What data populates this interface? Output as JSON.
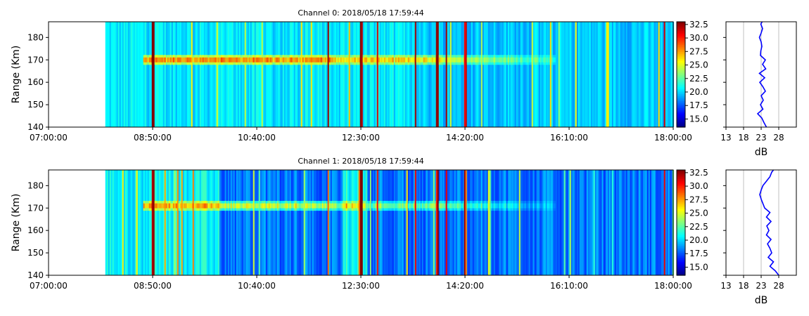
{
  "chart_data": [
    {
      "type": "heatmap",
      "title": "Channel 0: 2018/05/18 17:59:44",
      "ylabel": "Range (Km)",
      "xlabel": "",
      "x_ticks": [
        "07:00:00",
        "08:50:00",
        "10:40:00",
        "12:30:00",
        "14:20:00",
        "16:10:00",
        "18:00:00"
      ],
      "xlim": [
        "07:00:00",
        "18:00:00"
      ],
      "data_start": "08:00:00",
      "y_ticks": [
        140,
        150,
        160,
        170,
        180
      ],
      "ylim": [
        140,
        187
      ],
      "colormap": "jet",
      "colorbar": {
        "range": [
          13.5,
          33
        ],
        "ticks": [
          "15.0",
          "17.5",
          "20.0",
          "22.5",
          "25.0",
          "27.5",
          "30.0",
          "32.5"
        ]
      },
      "features": {
        "layer_range_km": 170,
        "layer_span": [
          "08:40:00",
          "15:55:00"
        ],
        "bright_streaks": [
          "08:50:00",
          "11:55:00",
          "12:30:00",
          "12:47:00",
          "13:27:00",
          "13:50:00",
          "14:00:00",
          "14:20:00",
          "17:50:00"
        ]
      },
      "profile": {
        "xlabel": "dB",
        "x_ticks": [
          13,
          18,
          23,
          28
        ],
        "xlim": [
          13,
          33
        ],
        "grid": true,
        "color": "#0000ff",
        "range_km": [
          140,
          142,
          144,
          146,
          148,
          150,
          152,
          154,
          156,
          158,
          160,
          162,
          164,
          166,
          168,
          170,
          172,
          174,
          176,
          178,
          180,
          182,
          184,
          186,
          187
        ],
        "db": [
          24.5,
          23.8,
          23.2,
          22.0,
          23.5,
          22.8,
          23.6,
          23.0,
          24.2,
          23.5,
          22.6,
          24.0,
          22.5,
          24.3,
          23.4,
          24.2,
          22.8,
          22.9,
          23.2,
          23.0,
          22.5,
          23.0,
          23.4,
          22.9,
          23.3
        ]
      }
    },
    {
      "type": "heatmap",
      "title": "Channel 1: 2018/05/18 17:59:44",
      "ylabel": "Range (Km)",
      "xlabel": "",
      "x_ticks": [
        "07:00:00",
        "08:50:00",
        "10:40:00",
        "12:30:00",
        "14:20:00",
        "16:10:00",
        "18:00:00"
      ],
      "xlim": [
        "07:00:00",
        "18:00:00"
      ],
      "data_start": "08:00:00",
      "y_ticks": [
        140,
        150,
        160,
        170,
        180
      ],
      "ylim": [
        140,
        187
      ],
      "colormap": "jet",
      "colorbar": {
        "range": [
          13.5,
          33
        ],
        "ticks": [
          "15.0",
          "17.5",
          "20.0",
          "22.5",
          "25.0",
          "27.5",
          "30.0",
          "32.5"
        ]
      },
      "features": {
        "layer_range_km": 171,
        "layer_span": [
          "08:40:00",
          "15:55:00"
        ],
        "bright_streaks": [
          "08:50:00",
          "11:55:00",
          "12:30:00",
          "12:47:00",
          "13:27:00",
          "13:50:00",
          "14:00:00",
          "14:20:00",
          "17:50:00"
        ]
      },
      "profile": {
        "xlabel": "dB",
        "x_ticks": [
          13,
          18,
          23,
          28
        ],
        "xlim": [
          13,
          33
        ],
        "grid": true,
        "color": "#0000ff",
        "range_km": [
          140,
          142,
          144,
          146,
          148,
          150,
          152,
          154,
          156,
          158,
          160,
          162,
          164,
          166,
          168,
          170,
          172,
          174,
          176,
          178,
          180,
          182,
          184,
          186,
          187
        ],
        "db": [
          28.0,
          27.0,
          25.5,
          26.5,
          25.0,
          26.0,
          25.5,
          24.8,
          25.8,
          24.5,
          25.2,
          24.6,
          25.8,
          24.5,
          25.5,
          24.0,
          23.5,
          23.0,
          22.6,
          23.0,
          23.5,
          24.5,
          25.5,
          26.0,
          26.5
        ]
      }
    }
  ]
}
